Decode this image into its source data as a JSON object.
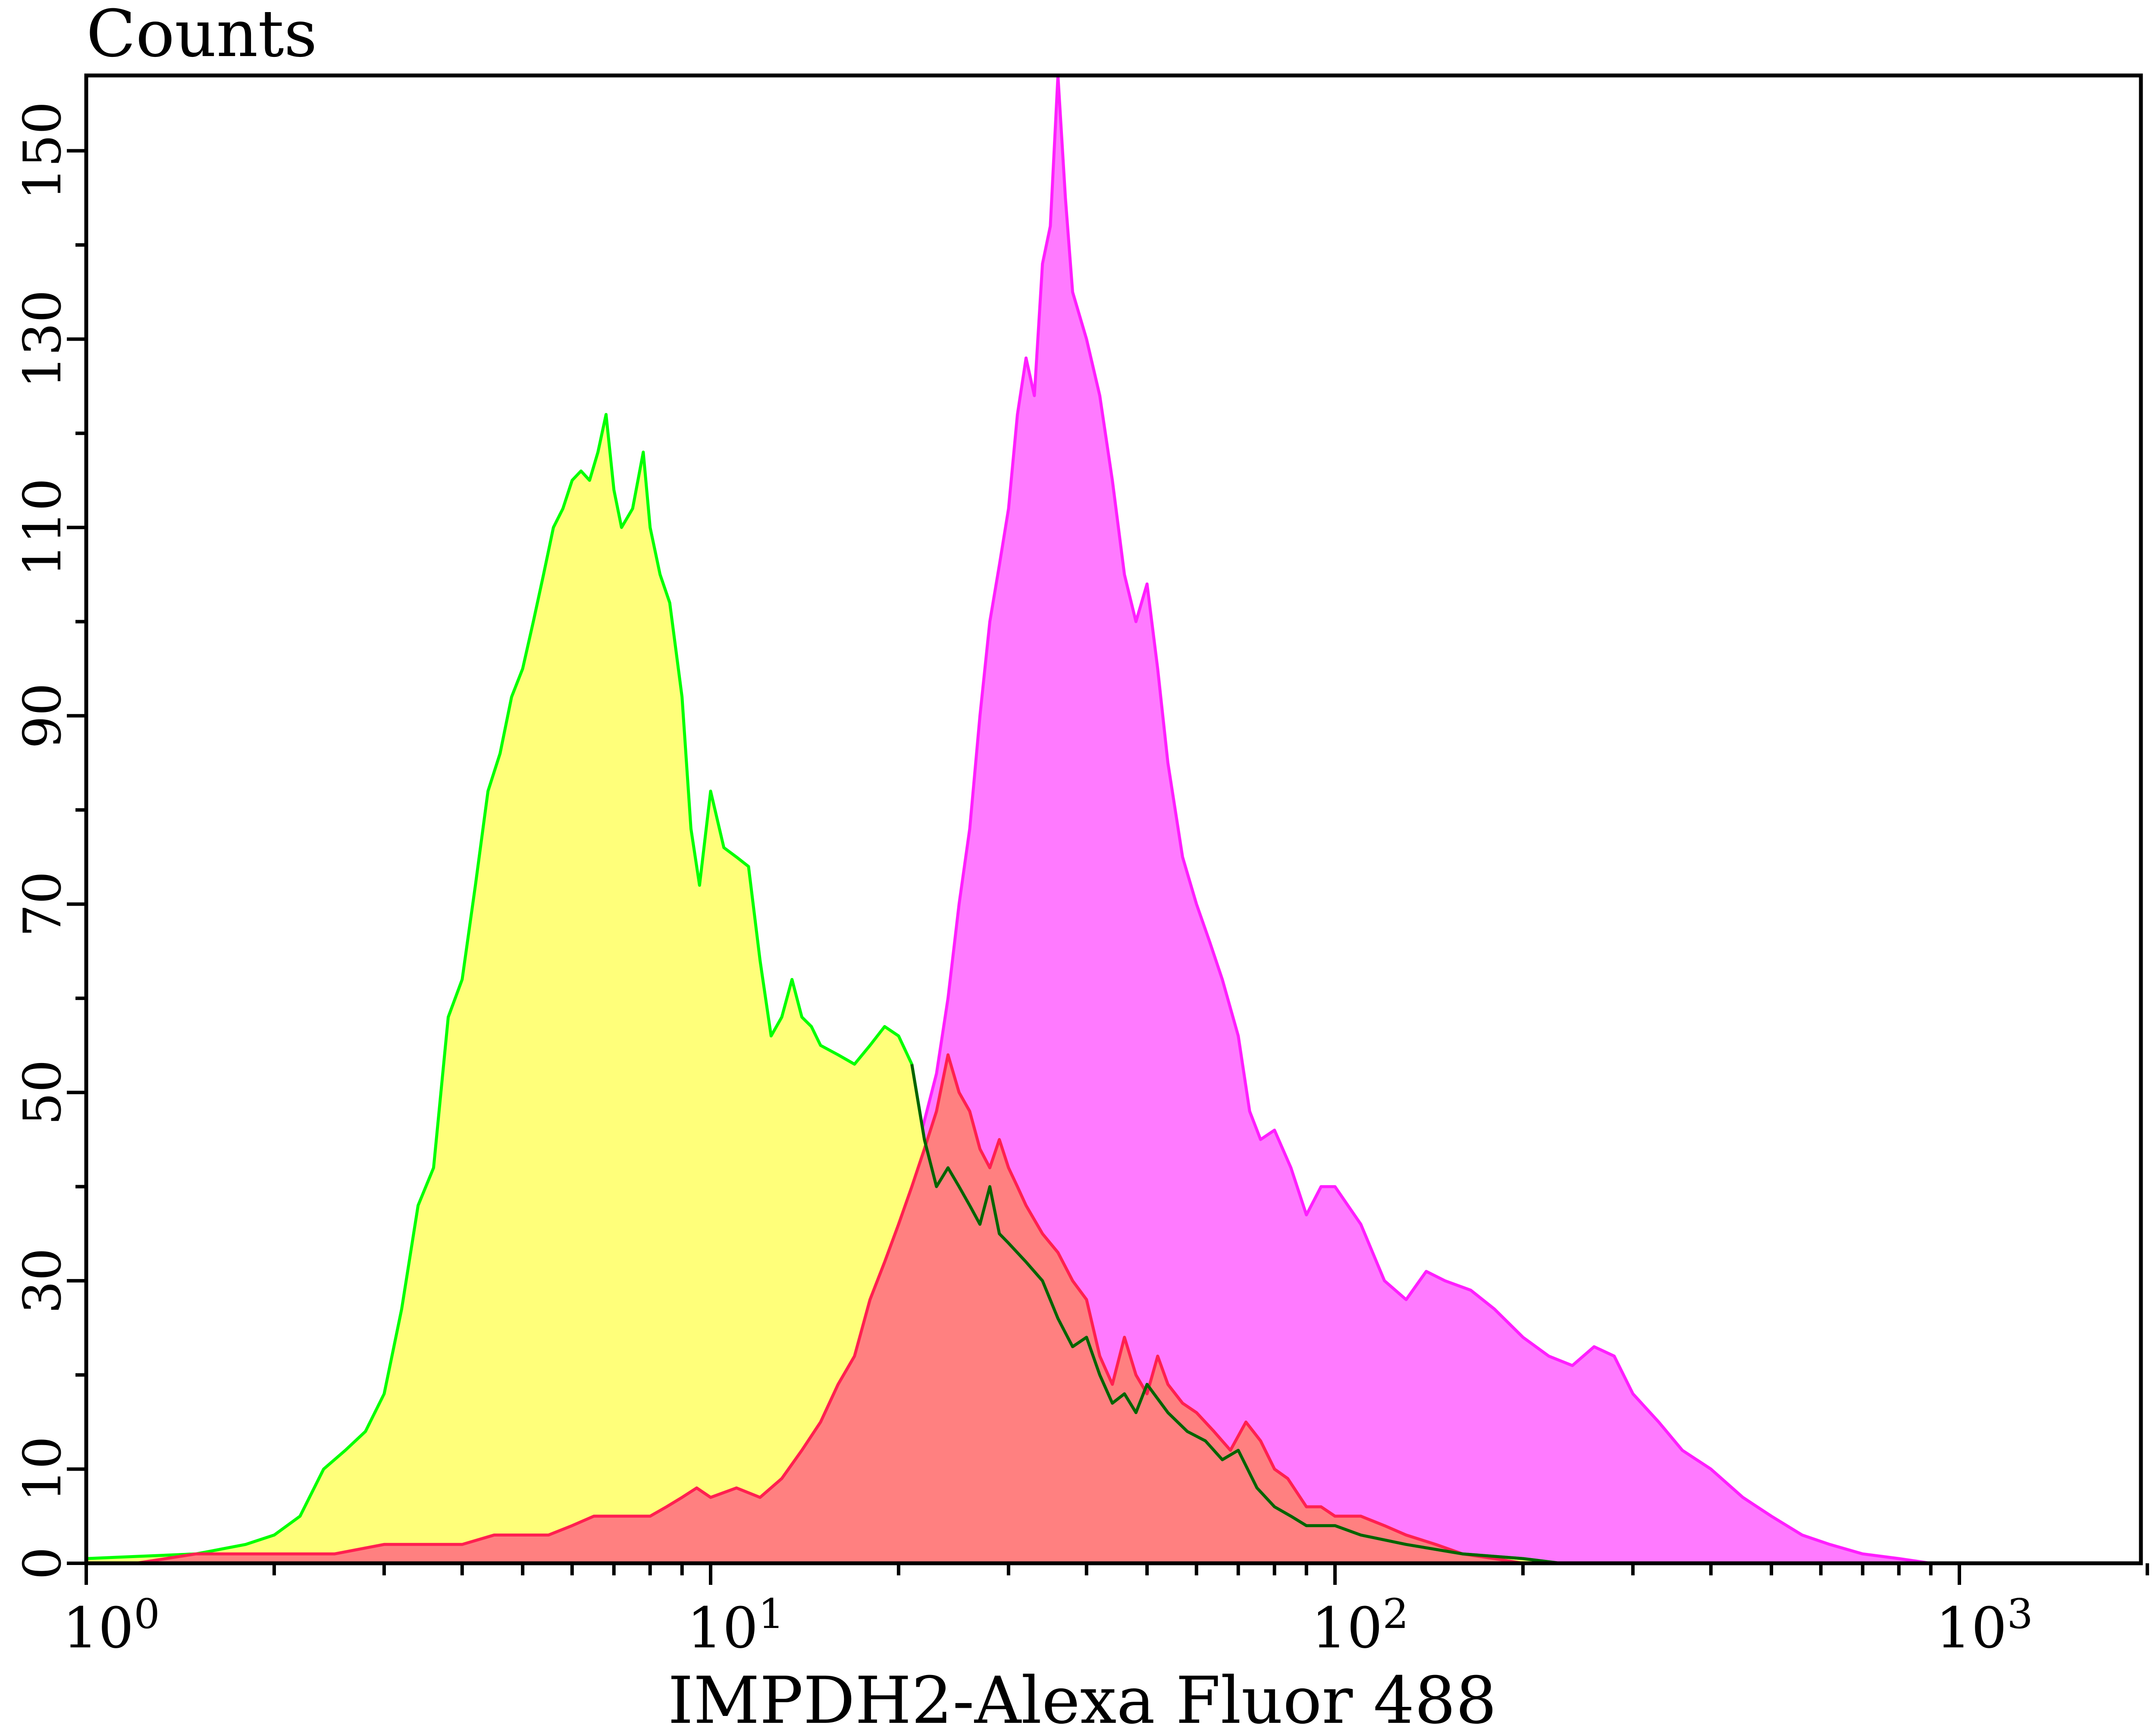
{
  "chart_data": {
    "type": "area",
    "title": "",
    "xlabel": "IMPDH2-Alexa Fluor 488",
    "ylabel": "Counts",
    "x_scale": "log",
    "xlim": [
      1,
      2000
    ],
    "ylim": [
      0,
      158
    ],
    "x_ticks": [
      {
        "value": 1,
        "base": "10",
        "exp": "0"
      },
      {
        "value": 10,
        "base": "10",
        "exp": "1"
      },
      {
        "value": 100,
        "base": "10",
        "exp": "2"
      },
      {
        "value": 1000,
        "base": "10",
        "exp": "3"
      }
    ],
    "y_ticks": [
      {
        "value": 0,
        "label": "0"
      },
      {
        "value": 10,
        "label": "10"
      },
      {
        "value": 30,
        "label": "30"
      },
      {
        "value": 50,
        "label": "50"
      },
      {
        "value": 70,
        "label": "70"
      },
      {
        "value": 90,
        "label": "90"
      },
      {
        "value": 110,
        "label": "110"
      },
      {
        "value": 130,
        "label": "130"
      },
      {
        "value": 150,
        "label": "150"
      }
    ],
    "grid": false,
    "legend": "none",
    "series": [
      {
        "fill": "#FF7AFF",
        "stroke": "#FF1EFF",
        "points": [
          [
            1.3,
            0
          ],
          [
            1.5,
            1
          ],
          [
            2,
            1
          ],
          [
            3,
            2
          ],
          [
            4,
            3
          ],
          [
            5,
            3
          ],
          [
            6,
            4
          ],
          [
            7,
            4
          ],
          [
            8,
            5
          ],
          [
            9,
            7
          ],
          [
            10,
            6
          ],
          [
            11,
            7
          ],
          [
            12,
            7
          ],
          [
            13,
            7
          ],
          [
            14,
            10
          ],
          [
            15,
            12
          ],
          [
            16,
            18
          ],
          [
            17,
            22
          ],
          [
            18,
            26
          ],
          [
            19,
            30
          ],
          [
            20,
            34
          ],
          [
            21,
            42
          ],
          [
            22,
            47
          ],
          [
            23,
            52
          ],
          [
            24,
            60
          ],
          [
            25,
            70
          ],
          [
            26,
            78
          ],
          [
            27,
            90
          ],
          [
            28,
            100
          ],
          [
            29,
            106
          ],
          [
            30,
            112
          ],
          [
            31,
            122
          ],
          [
            32,
            128
          ],
          [
            33,
            124
          ],
          [
            34,
            138
          ],
          [
            35,
            142
          ],
          [
            36,
            158
          ],
          [
            37,
            145
          ],
          [
            38,
            135
          ],
          [
            40,
            130
          ],
          [
            42,
            124
          ],
          [
            44,
            115
          ],
          [
            46,
            105
          ],
          [
            48,
            100
          ],
          [
            50,
            104
          ],
          [
            52,
            95
          ],
          [
            54,
            85
          ],
          [
            57,
            75
          ],
          [
            60,
            70
          ],
          [
            63,
            66
          ],
          [
            66,
            62
          ],
          [
            70,
            56
          ],
          [
            73,
            48
          ],
          [
            76,
            45
          ],
          [
            80,
            46
          ],
          [
            85,
            42
          ],
          [
            90,
            37
          ],
          [
            95,
            40
          ],
          [
            100,
            40
          ],
          [
            110,
            36
          ],
          [
            120,
            30
          ],
          [
            130,
            28
          ],
          [
            140,
            31
          ],
          [
            150,
            30
          ],
          [
            165,
            29
          ],
          [
            180,
            27
          ],
          [
            200,
            24
          ],
          [
            220,
            22
          ],
          [
            240,
            21
          ],
          [
            260,
            23
          ],
          [
            280,
            22
          ],
          [
            300,
            18
          ],
          [
            330,
            15
          ],
          [
            360,
            12
          ],
          [
            400,
            10
          ],
          [
            450,
            7
          ],
          [
            500,
            5
          ],
          [
            560,
            3
          ],
          [
            620,
            2
          ],
          [
            700,
            1
          ],
          [
            800,
            0.5
          ],
          [
            900,
            0
          ]
        ]
      },
      {
        "fill": "#FFFF7A",
        "stroke": "#00FF00",
        "points": [
          [
            1,
            0.5
          ],
          [
            1.5,
            1
          ],
          [
            1.8,
            2
          ],
          [
            2,
            3
          ],
          [
            2.2,
            5
          ],
          [
            2.4,
            10
          ],
          [
            2.6,
            12
          ],
          [
            2.8,
            14
          ],
          [
            3,
            18
          ],
          [
            3.2,
            27
          ],
          [
            3.4,
            38
          ],
          [
            3.6,
            42
          ],
          [
            3.8,
            58
          ],
          [
            4,
            62
          ],
          [
            4.2,
            72
          ],
          [
            4.4,
            82
          ],
          [
            4.6,
            86
          ],
          [
            4.8,
            92
          ],
          [
            5,
            95
          ],
          [
            5.2,
            100
          ],
          [
            5.4,
            105
          ],
          [
            5.6,
            110
          ],
          [
            5.8,
            112
          ],
          [
            6,
            115
          ],
          [
            6.2,
            116
          ],
          [
            6.4,
            115
          ],
          [
            6.6,
            118
          ],
          [
            6.8,
            122
          ],
          [
            7,
            114
          ],
          [
            7.2,
            110
          ],
          [
            7.5,
            112
          ],
          [
            7.8,
            118
          ],
          [
            8,
            110
          ],
          [
            8.3,
            105
          ],
          [
            8.6,
            102
          ],
          [
            9,
            92
          ],
          [
            9.3,
            78
          ],
          [
            9.6,
            72
          ],
          [
            10,
            82
          ],
          [
            10.5,
            76
          ],
          [
            11,
            75
          ],
          [
            11.5,
            74
          ],
          [
            12,
            64
          ],
          [
            12.5,
            56
          ],
          [
            13,
            58
          ],
          [
            13.5,
            62
          ],
          [
            14,
            58
          ],
          [
            14.5,
            57
          ],
          [
            15,
            55
          ],
          [
            16,
            54
          ],
          [
            17,
            53
          ],
          [
            18,
            55
          ],
          [
            19,
            57
          ],
          [
            20,
            56
          ],
          [
            21,
            53
          ],
          [
            22,
            45
          ],
          [
            23,
            40
          ],
          [
            24,
            42
          ],
          [
            25,
            40
          ],
          [
            26,
            38
          ],
          [
            27,
            36
          ],
          [
            28,
            40
          ],
          [
            29,
            35
          ],
          [
            30,
            34
          ],
          [
            32,
            32
          ],
          [
            34,
            30
          ],
          [
            36,
            26
          ],
          [
            38,
            23
          ],
          [
            40,
            24
          ],
          [
            42,
            20
          ],
          [
            44,
            17
          ],
          [
            46,
            18
          ],
          [
            48,
            16
          ],
          [
            50,
            19
          ],
          [
            54,
            16
          ],
          [
            58,
            14
          ],
          [
            62,
            13
          ],
          [
            66,
            11
          ],
          [
            70,
            12
          ],
          [
            75,
            8
          ],
          [
            80,
            6
          ],
          [
            85,
            5
          ],
          [
            90,
            4
          ],
          [
            100,
            4
          ],
          [
            110,
            3
          ],
          [
            130,
            2
          ],
          [
            160,
            1
          ],
          [
            200,
            0.5
          ],
          [
            230,
            0
          ]
        ]
      },
      {
        "fill": "#FF8080",
        "stroke": "#FF2050",
        "points": [
          [
            1.2,
            0
          ],
          [
            1.5,
            1
          ],
          [
            2,
            1
          ],
          [
            2.5,
            1
          ],
          [
            3,
            2
          ],
          [
            3.5,
            2
          ],
          [
            4,
            2
          ],
          [
            4.5,
            3
          ],
          [
            5,
            3
          ],
          [
            5.5,
            3
          ],
          [
            6,
            4
          ],
          [
            6.5,
            5
          ],
          [
            7,
            5
          ],
          [
            7.5,
            5
          ],
          [
            8,
            5
          ],
          [
            8.5,
            6
          ],
          [
            9,
            7
          ],
          [
            9.5,
            8
          ],
          [
            10,
            7
          ],
          [
            11,
            8
          ],
          [
            12,
            7
          ],
          [
            13,
            9
          ],
          [
            14,
            12
          ],
          [
            15,
            15
          ],
          [
            16,
            19
          ],
          [
            17,
            22
          ],
          [
            18,
            28
          ],
          [
            19,
            32
          ],
          [
            20,
            36
          ],
          [
            21,
            40
          ],
          [
            22,
            44
          ],
          [
            23,
            48
          ],
          [
            24,
            54
          ],
          [
            25,
            50
          ],
          [
            26,
            48
          ],
          [
            27,
            44
          ],
          [
            28,
            42
          ],
          [
            29,
            45
          ],
          [
            30,
            42
          ],
          [
            31,
            40
          ],
          [
            32,
            38
          ],
          [
            34,
            35
          ],
          [
            36,
            33
          ],
          [
            38,
            30
          ],
          [
            40,
            28
          ],
          [
            42,
            22
          ],
          [
            44,
            19
          ],
          [
            46,
            24
          ],
          [
            48,
            20
          ],
          [
            50,
            18
          ],
          [
            52,
            22
          ],
          [
            54,
            19
          ],
          [
            57,
            17
          ],
          [
            60,
            16
          ],
          [
            64,
            14
          ],
          [
            68,
            12
          ],
          [
            72,
            15
          ],
          [
            76,
            13
          ],
          [
            80,
            10
          ],
          [
            84,
            9
          ],
          [
            90,
            6
          ],
          [
            95,
            6
          ],
          [
            100,
            5
          ],
          [
            110,
            5
          ],
          [
            120,
            4
          ],
          [
            130,
            3
          ],
          [
            145,
            2
          ],
          [
            160,
            1
          ],
          [
            180,
            0.5
          ],
          [
            200,
            0
          ]
        ]
      }
    ],
    "overlap_stroke": "#006400"
  }
}
